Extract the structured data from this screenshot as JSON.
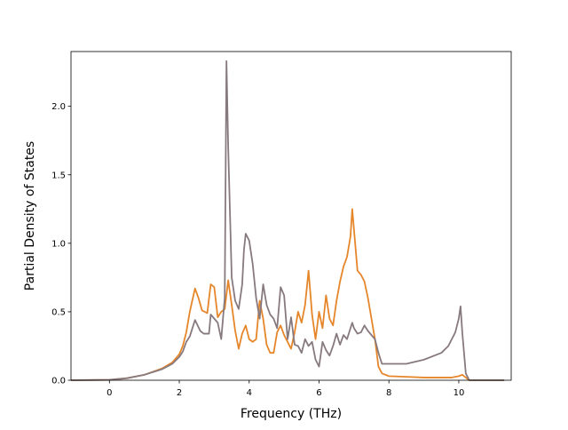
{
  "chart_data": {
    "type": "line",
    "title": "",
    "xlabel": "Frequency (THz)",
    "ylabel": "Partial Density of States",
    "xlim": [
      -1.1,
      11.5
    ],
    "ylim": [
      0,
      2.4
    ],
    "xticks": [
      0,
      2,
      4,
      6,
      8,
      10
    ],
    "yticks": [
      0.0,
      0.5,
      1.0,
      1.5,
      2.0
    ],
    "xtick_labels": [
      "0",
      "2",
      "4",
      "6",
      "8",
      "10"
    ],
    "ytick_labels": [
      "0.0",
      "0.5",
      "1.0",
      "1.5",
      "2.0"
    ],
    "grid": false,
    "legend": "none",
    "series": [
      {
        "color": "#e6862a",
        "points": [
          [
            -1.1,
            0.0
          ],
          [
            0.0,
            0.003
          ],
          [
            0.5,
            0.015
          ],
          [
            1.0,
            0.04
          ],
          [
            1.5,
            0.085
          ],
          [
            1.8,
            0.13
          ],
          [
            2.0,
            0.19
          ],
          [
            2.1,
            0.25
          ],
          [
            2.2,
            0.35
          ],
          [
            2.3,
            0.5
          ],
          [
            2.45,
            0.67
          ],
          [
            2.55,
            0.6
          ],
          [
            2.65,
            0.51
          ],
          [
            2.8,
            0.49
          ],
          [
            2.9,
            0.7
          ],
          [
            3.0,
            0.68
          ],
          [
            3.1,
            0.46
          ],
          [
            3.2,
            0.5
          ],
          [
            3.3,
            0.52
          ],
          [
            3.4,
            0.73
          ],
          [
            3.5,
            0.55
          ],
          [
            3.6,
            0.36
          ],
          [
            3.7,
            0.23
          ],
          [
            3.8,
            0.34
          ],
          [
            3.9,
            0.4
          ],
          [
            4.0,
            0.3
          ],
          [
            4.1,
            0.28
          ],
          [
            4.2,
            0.3
          ],
          [
            4.3,
            0.58
          ],
          [
            4.4,
            0.45
          ],
          [
            4.5,
            0.26
          ],
          [
            4.6,
            0.2
          ],
          [
            4.7,
            0.2
          ],
          [
            4.8,
            0.35
          ],
          [
            4.9,
            0.4
          ],
          [
            5.0,
            0.33
          ],
          [
            5.1,
            0.28
          ],
          [
            5.2,
            0.23
          ],
          [
            5.3,
            0.35
          ],
          [
            5.4,
            0.5
          ],
          [
            5.5,
            0.42
          ],
          [
            5.6,
            0.55
          ],
          [
            5.7,
            0.8
          ],
          [
            5.8,
            0.48
          ],
          [
            5.9,
            0.3
          ],
          [
            6.0,
            0.5
          ],
          [
            6.1,
            0.38
          ],
          [
            6.2,
            0.62
          ],
          [
            6.3,
            0.45
          ],
          [
            6.4,
            0.4
          ],
          [
            6.5,
            0.58
          ],
          [
            6.6,
            0.72
          ],
          [
            6.7,
            0.83
          ],
          [
            6.8,
            0.9
          ],
          [
            6.9,
            1.05
          ],
          [
            6.95,
            1.25
          ],
          [
            7.0,
            1.1
          ],
          [
            7.1,
            0.8
          ],
          [
            7.2,
            0.77
          ],
          [
            7.3,
            0.72
          ],
          [
            7.4,
            0.6
          ],
          [
            7.5,
            0.45
          ],
          [
            7.6,
            0.3
          ],
          [
            7.7,
            0.1
          ],
          [
            7.8,
            0.05
          ],
          [
            8.0,
            0.03
          ],
          [
            8.5,
            0.025
          ],
          [
            9.0,
            0.02
          ],
          [
            9.5,
            0.02
          ],
          [
            9.8,
            0.02
          ],
          [
            10.0,
            0.03
          ],
          [
            10.1,
            0.04
          ],
          [
            10.2,
            0.02
          ],
          [
            10.3,
            0.0
          ],
          [
            11.3,
            0.0
          ]
        ]
      },
      {
        "color": "#877a7f",
        "points": [
          [
            -1.1,
            0.0
          ],
          [
            0.0,
            0.003
          ],
          [
            0.5,
            0.015
          ],
          [
            1.0,
            0.04
          ],
          [
            1.5,
            0.08
          ],
          [
            1.8,
            0.12
          ],
          [
            2.0,
            0.17
          ],
          [
            2.1,
            0.21
          ],
          [
            2.2,
            0.28
          ],
          [
            2.3,
            0.32
          ],
          [
            2.45,
            0.44
          ],
          [
            2.6,
            0.36
          ],
          [
            2.7,
            0.34
          ],
          [
            2.85,
            0.34
          ],
          [
            2.9,
            0.48
          ],
          [
            3.0,
            0.45
          ],
          [
            3.1,
            0.42
          ],
          [
            3.2,
            0.3
          ],
          [
            3.3,
            0.6
          ],
          [
            3.35,
            2.33
          ],
          [
            3.4,
            1.7
          ],
          [
            3.5,
            0.75
          ],
          [
            3.6,
            0.58
          ],
          [
            3.7,
            0.52
          ],
          [
            3.8,
            0.7
          ],
          [
            3.85,
            0.95
          ],
          [
            3.9,
            1.07
          ],
          [
            4.0,
            1.02
          ],
          [
            4.1,
            0.85
          ],
          [
            4.2,
            0.6
          ],
          [
            4.3,
            0.45
          ],
          [
            4.4,
            0.7
          ],
          [
            4.5,
            0.55
          ],
          [
            4.6,
            0.48
          ],
          [
            4.7,
            0.45
          ],
          [
            4.8,
            0.38
          ],
          [
            4.9,
            0.68
          ],
          [
            5.0,
            0.62
          ],
          [
            5.1,
            0.3
          ],
          [
            5.2,
            0.46
          ],
          [
            5.3,
            0.26
          ],
          [
            5.4,
            0.25
          ],
          [
            5.5,
            0.2
          ],
          [
            5.6,
            0.3
          ],
          [
            5.7,
            0.25
          ],
          [
            5.8,
            0.28
          ],
          [
            5.9,
            0.15
          ],
          [
            6.0,
            0.1
          ],
          [
            6.1,
            0.28
          ],
          [
            6.2,
            0.22
          ],
          [
            6.3,
            0.18
          ],
          [
            6.4,
            0.25
          ],
          [
            6.5,
            0.34
          ],
          [
            6.6,
            0.26
          ],
          [
            6.7,
            0.33
          ],
          [
            6.8,
            0.3
          ],
          [
            6.9,
            0.38
          ],
          [
            6.95,
            0.42
          ],
          [
            7.0,
            0.38
          ],
          [
            7.1,
            0.34
          ],
          [
            7.2,
            0.35
          ],
          [
            7.3,
            0.4
          ],
          [
            7.4,
            0.36
          ],
          [
            7.5,
            0.33
          ],
          [
            7.6,
            0.3
          ],
          [
            7.7,
            0.2
          ],
          [
            7.8,
            0.12
          ],
          [
            8.0,
            0.12
          ],
          [
            8.5,
            0.12
          ],
          [
            9.0,
            0.15
          ],
          [
            9.5,
            0.2
          ],
          [
            9.7,
            0.25
          ],
          [
            9.9,
            0.35
          ],
          [
            10.0,
            0.45
          ],
          [
            10.05,
            0.54
          ],
          [
            10.1,
            0.35
          ],
          [
            10.2,
            0.05
          ],
          [
            10.3,
            0.0
          ],
          [
            11.3,
            0.0
          ]
        ]
      }
    ]
  }
}
